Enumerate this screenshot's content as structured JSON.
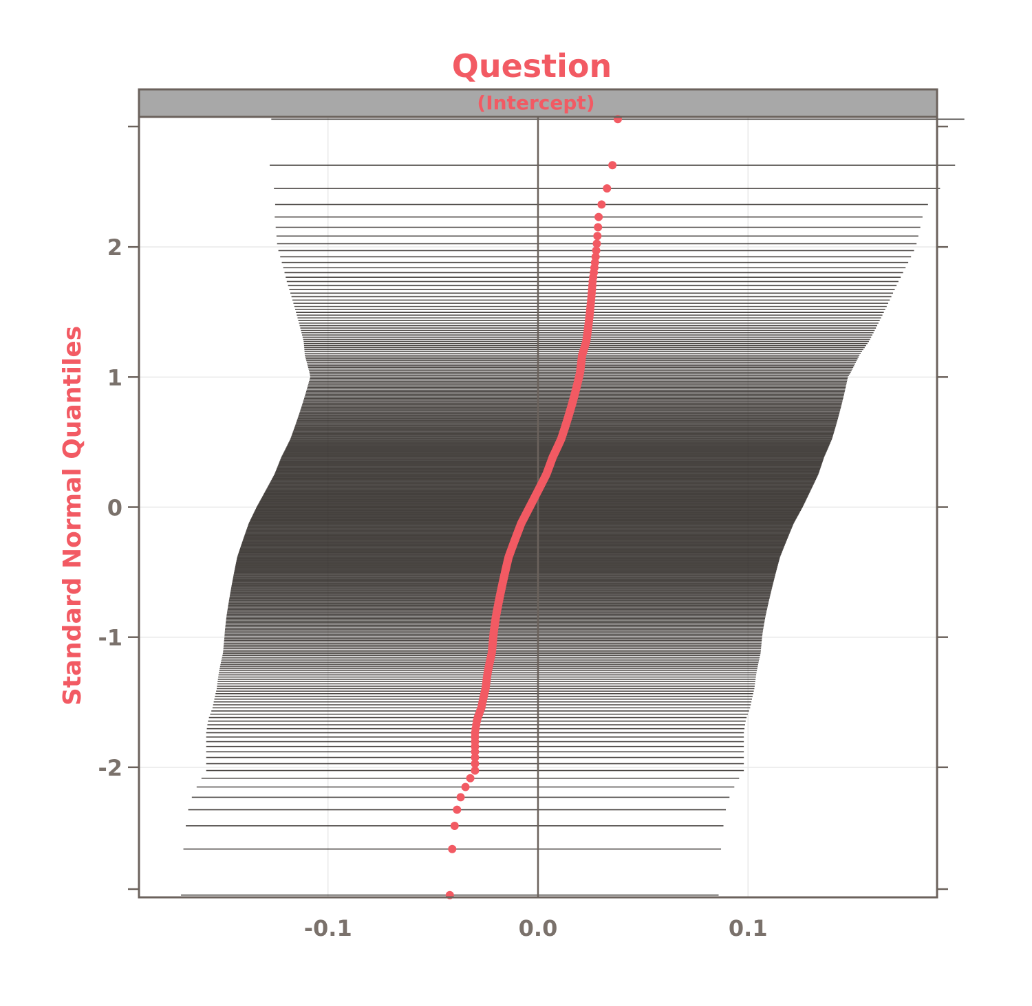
{
  "chart_data": {
    "type": "scatter",
    "title": "Question",
    "panel_label": "(Intercept)",
    "xlabel": "",
    "ylabel": "Standard Normal Quantiles",
    "xlim": [
      -0.19,
      0.19
    ],
    "ylim": [
      -3.0,
      3.0
    ],
    "x_ticks": [
      -0.1,
      0.0,
      0.1
    ],
    "x_tick_labels": [
      "-0.1",
      "0.0",
      "0.1"
    ],
    "y_ticks": [
      -2,
      -1,
      0,
      1,
      2
    ],
    "y_tick_labels": [
      "-2",
      "-1",
      "0",
      "1",
      "2"
    ],
    "reference_line_x": 0.0,
    "grid": true,
    "n_points": 350,
    "estimate_quantiles": [
      [
        0.0,
        -0.042
      ],
      [
        0.01,
        -0.038
      ],
      [
        0.02,
        -0.03
      ],
      [
        0.03,
        -0.03
      ],
      [
        0.04,
        -0.03
      ],
      [
        0.05,
        -0.029
      ],
      [
        0.06,
        -0.027
      ],
      [
        0.08,
        -0.025
      ],
      [
        0.1,
        -0.024
      ],
      [
        0.13,
        -0.022
      ],
      [
        0.17,
        -0.021
      ],
      [
        0.2,
        -0.02
      ],
      [
        0.25,
        -0.018
      ],
      [
        0.3,
        -0.016
      ],
      [
        0.35,
        -0.014
      ],
      [
        0.4,
        -0.011
      ],
      [
        0.45,
        -0.008
      ],
      [
        0.5,
        -0.004
      ],
      [
        0.55,
        0.0
      ],
      [
        0.6,
        0.004
      ],
      [
        0.65,
        0.007
      ],
      [
        0.7,
        0.011
      ],
      [
        0.75,
        0.014
      ],
      [
        0.8,
        0.017
      ],
      [
        0.85,
        0.02
      ],
      [
        0.88,
        0.021
      ],
      [
        0.9,
        0.023
      ],
      [
        0.92,
        0.024
      ],
      [
        0.94,
        0.025
      ],
      [
        0.96,
        0.026
      ],
      [
        0.97,
        0.027
      ],
      [
        0.98,
        0.028
      ],
      [
        0.99,
        0.029
      ],
      [
        1.0,
        0.038
      ]
    ],
    "interval_halfwidth_by_y": [
      [
        -2.7,
        0.128
      ],
      [
        -2.31,
        0.128
      ],
      [
        -2.1,
        0.128
      ],
      [
        -1.0,
        0.128
      ],
      [
        0.0,
        0.13
      ],
      [
        1.0,
        0.128
      ],
      [
        2.0,
        0.152
      ],
      [
        2.31,
        0.155
      ],
      [
        2.7,
        0.165
      ]
    ],
    "point_color": "#f25a63",
    "interval_color": "#2b2723",
    "strip_color": "#a8a8a8",
    "frame_color": "#6b625c",
    "text_color": "#f25a63",
    "tick_text_color": "#7a716b"
  }
}
